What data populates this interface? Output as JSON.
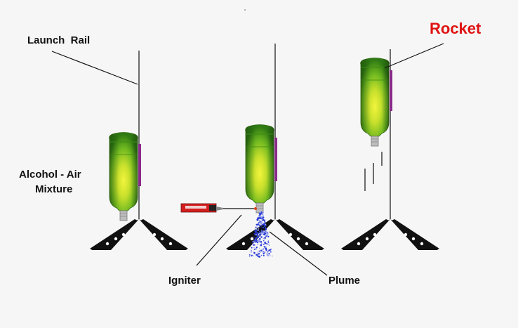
{
  "labels": {
    "launch_rail": "Launch  Rail",
    "mixture_line1": "Alcohol - Air",
    "mixture_line2": "Mixture",
    "rocket": "Rocket",
    "igniter": "Igniter",
    "plume": "Plume"
  },
  "colors": {
    "background": "#f6f6f6",
    "bottle_green": "#5aa81c",
    "bottle_glow": "#f2f23a",
    "rail_strip": "#8a2a8a",
    "igniter_body": "#d41e1e",
    "plume_blue": "#2a3ad6",
    "rocket_label": "#e01414"
  }
}
